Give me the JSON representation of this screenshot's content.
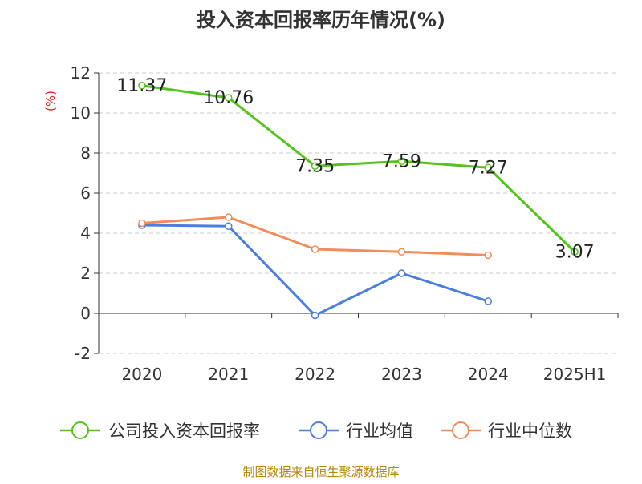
{
  "chart_data": {
    "type": "line",
    "title": "投入资本回报率历年情况(%)",
    "ylabel": "(%)",
    "xlabel": "",
    "categories": [
      "2020",
      "2021",
      "2022",
      "2023",
      "2024",
      "2025H1"
    ],
    "ylim": [
      -2,
      12
    ],
    "yticks": [
      -2,
      0,
      2,
      4,
      6,
      8,
      10,
      12
    ],
    "grid": true,
    "legend_position": "bottom",
    "series": [
      {
        "name": "公司投入资本回报率",
        "color": "#52c41a",
        "values": [
          11.37,
          10.76,
          7.35,
          7.59,
          7.27,
          3.07
        ],
        "labels": [
          "11.37",
          "10.76",
          "7.35",
          "7.59",
          "7.27",
          "3.07"
        ]
      },
      {
        "name": "行业均值",
        "color": "#4a7fdc",
        "values": [
          4.4,
          4.35,
          -0.1,
          2.0,
          0.6,
          null
        ]
      },
      {
        "name": "行业中位数",
        "color": "#f28c5a",
        "values": [
          4.5,
          4.8,
          3.2,
          3.07,
          2.9,
          null
        ]
      }
    ]
  },
  "source": "制图数据来自恒生聚源数据库"
}
